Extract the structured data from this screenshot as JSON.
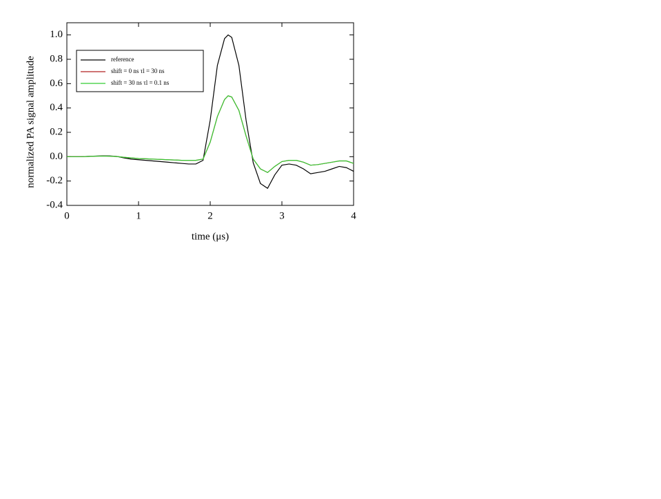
{
  "chart_data": {
    "type": "line",
    "x_label": "time (μs)",
    "y_label": "normalized PA signal amplitude",
    "x": [
      0,
      0.1,
      0.2,
      0.3,
      0.4,
      0.5,
      0.6,
      0.7,
      0.8,
      0.9,
      1.0,
      1.1,
      1.2,
      1.3,
      1.4,
      1.5,
      1.6,
      1.7,
      1.8,
      1.9,
      2.0,
      2.1,
      2.2,
      2.25,
      2.3,
      2.4,
      2.5,
      2.6,
      2.7,
      2.8,
      2.9,
      3.0,
      3.1,
      3.2,
      3.3,
      3.4,
      3.5,
      3.6,
      3.7,
      3.8,
      3.9,
      4.0
    ],
    "series": [
      {
        "name": "reference",
        "color": "#000000",
        "values": [
          0,
          0,
          0,
          0.003,
          0.005,
          0.007,
          0.006,
          0.002,
          -0.01,
          -0.02,
          -0.025,
          -0.03,
          -0.035,
          -0.04,
          -0.045,
          -0.05,
          -0.055,
          -0.06,
          -0.06,
          -0.03,
          0.3,
          0.75,
          0.97,
          1.0,
          0.98,
          0.75,
          0.3,
          -0.05,
          -0.22,
          -0.26,
          -0.15,
          -0.07,
          -0.06,
          -0.07,
          -0.1,
          -0.14,
          -0.13,
          -0.12,
          -0.1,
          -0.08,
          -0.09,
          -0.12
        ]
      },
      {
        "name": "shift = 0  ns  τl = 30  ns",
        "color": "#b22222",
        "values": [
          0,
          0,
          0,
          0.002,
          0.004,
          0.005,
          0.004,
          0.001,
          -0.005,
          -0.01,
          -0.015,
          -0.017,
          -0.02,
          -0.022,
          -0.025,
          -0.027,
          -0.03,
          -0.03,
          -0.03,
          -0.02,
          0.12,
          0.33,
          0.47,
          0.5,
          0.49,
          0.38,
          0.17,
          -0.02,
          -0.1,
          -0.13,
          -0.08,
          -0.04,
          -0.03,
          -0.03,
          -0.045,
          -0.07,
          -0.065,
          -0.055,
          -0.045,
          -0.035,
          -0.035,
          -0.055
        ]
      },
      {
        "name": "shift = 30  ns  τl = 0.1  ns",
        "color": "#33cc33",
        "values": [
          0,
          0,
          0,
          0.002,
          0.004,
          0.005,
          0.004,
          0.001,
          -0.005,
          -0.01,
          -0.015,
          -0.017,
          -0.02,
          -0.022,
          -0.025,
          -0.027,
          -0.03,
          -0.03,
          -0.03,
          -0.02,
          0.12,
          0.33,
          0.47,
          0.5,
          0.49,
          0.38,
          0.17,
          -0.02,
          -0.1,
          -0.13,
          -0.08,
          -0.04,
          -0.03,
          -0.03,
          -0.045,
          -0.07,
          -0.065,
          -0.055,
          -0.045,
          -0.035,
          -0.035,
          -0.055
        ]
      }
    ],
    "xlim": [
      0,
      4
    ],
    "xticks": [
      0,
      1,
      2,
      3,
      4
    ],
    "ylim": [
      -0.4,
      1.1
    ],
    "yticks": [
      -0.4,
      -0.2,
      {
        "value": 0,
        "label": "0.0"
      },
      0.2,
      0.4,
      0.6,
      0.8,
      {
        "value": 1,
        "label": "1.0"
      }
    ],
    "grid": false,
    "legend": "upper left"
  }
}
